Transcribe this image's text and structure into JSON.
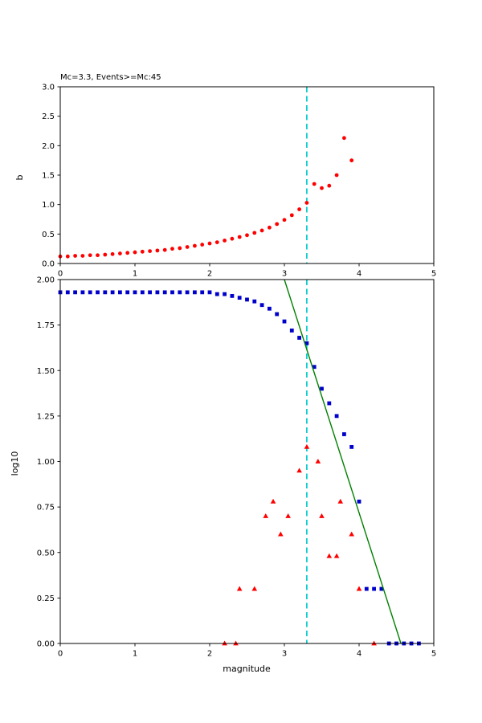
{
  "figure": {
    "background": "#ffffff",
    "accent_colors": {
      "scatter_red": "#ff0000",
      "cumulative_blue": "#0000cd",
      "fit_green": "#008000",
      "mc_cyan": "#00cccc"
    }
  },
  "chart_data": [
    {
      "type": "scatter",
      "title": "Mc=3.3, Events>=Mc:45",
      "xlabel": "",
      "ylabel": "b",
      "xlim": [
        0,
        5
      ],
      "ylim": [
        0,
        3
      ],
      "grid": false,
      "legend": "none",
      "xticks": [
        0,
        1,
        2,
        3,
        4,
        5
      ],
      "xticklabels": [
        "0",
        "1",
        "2",
        "3",
        "4",
        "5"
      ],
      "yticks": [
        0.0,
        0.5,
        1.0,
        1.5,
        2.0,
        2.5,
        3.0
      ],
      "yticklabels": [
        "0.0",
        "0.5",
        "1.0",
        "1.5",
        "2.0",
        "2.5",
        "3.0"
      ],
      "vline": {
        "x": 3.3,
        "color": "#00cccc",
        "style": "dashed"
      },
      "series": [
        {
          "name": "b_value",
          "marker": "circle",
          "color": "#ff0000",
          "x": [
            0.0,
            0.1,
            0.2,
            0.3,
            0.4,
            0.5,
            0.6,
            0.7,
            0.8,
            0.9,
            1.0,
            1.1,
            1.2,
            1.3,
            1.4,
            1.5,
            1.6,
            1.7,
            1.8,
            1.9,
            2.0,
            2.1,
            2.2,
            2.3,
            2.4,
            2.5,
            2.6,
            2.7,
            2.8,
            2.9,
            3.0,
            3.1,
            3.2,
            3.3,
            3.4,
            3.5,
            3.6,
            3.7,
            3.8,
            3.9
          ],
          "y": [
            0.12,
            0.12,
            0.13,
            0.13,
            0.14,
            0.14,
            0.15,
            0.16,
            0.17,
            0.18,
            0.19,
            0.2,
            0.21,
            0.22,
            0.23,
            0.25,
            0.26,
            0.28,
            0.3,
            0.32,
            0.34,
            0.36,
            0.39,
            0.42,
            0.45,
            0.48,
            0.52,
            0.56,
            0.61,
            0.67,
            0.74,
            0.82,
            0.92,
            1.03,
            1.35,
            1.28,
            1.32,
            1.5,
            2.13,
            1.75
          ]
        }
      ]
    },
    {
      "type": "scatter",
      "title": "",
      "xlabel": "magnitude",
      "ylabel": "log10",
      "xlim": [
        0,
        5
      ],
      "ylim": [
        0,
        2
      ],
      "grid": false,
      "legend": "none",
      "xticks": [
        0,
        1,
        2,
        3,
        4,
        5
      ],
      "xticklabels": [
        "0",
        "1",
        "2",
        "3",
        "4",
        "5"
      ],
      "yticks": [
        0.0,
        0.25,
        0.5,
        0.75,
        1.0,
        1.25,
        1.5,
        1.75,
        2.0
      ],
      "yticklabels": [
        "0.00",
        "0.25",
        "0.50",
        "0.75",
        "1.00",
        "1.25",
        "1.50",
        "1.75",
        "2.00"
      ],
      "vline": {
        "x": 3.3,
        "color": "#00cccc",
        "style": "dashed"
      },
      "series": [
        {
          "name": "cumulative_counts",
          "marker": "square",
          "color": "#0000cd",
          "x": [
            0.0,
            0.1,
            0.2,
            0.3,
            0.4,
            0.5,
            0.6,
            0.7,
            0.8,
            0.9,
            1.0,
            1.1,
            1.2,
            1.3,
            1.4,
            1.5,
            1.6,
            1.7,
            1.8,
            1.9,
            2.0,
            2.1,
            2.2,
            2.3,
            2.4,
            2.5,
            2.6,
            2.7,
            2.8,
            2.9,
            3.0,
            3.1,
            3.2,
            3.3,
            3.4,
            3.5,
            3.6,
            3.7,
            3.8,
            3.9,
            4.0,
            4.1,
            4.2,
            4.3,
            4.4,
            4.5,
            4.6,
            4.7,
            4.8
          ],
          "y": [
            1.93,
            1.93,
            1.93,
            1.93,
            1.93,
            1.93,
            1.93,
            1.93,
            1.93,
            1.93,
            1.93,
            1.93,
            1.93,
            1.93,
            1.93,
            1.93,
            1.93,
            1.93,
            1.93,
            1.93,
            1.93,
            1.92,
            1.92,
            1.91,
            1.9,
            1.89,
            1.88,
            1.86,
            1.84,
            1.81,
            1.77,
            1.72,
            1.68,
            1.65,
            1.52,
            1.4,
            1.32,
            1.25,
            1.15,
            1.08,
            0.78,
            0.3,
            0.3,
            0.3,
            0.0,
            0.0,
            0.0,
            0.0,
            0.0
          ]
        },
        {
          "name": "bin_counts",
          "marker": "triangle",
          "color": "#ff0000",
          "x": [
            2.2,
            2.35,
            2.4,
            2.6,
            2.75,
            2.85,
            2.95,
            3.05,
            3.2,
            3.3,
            3.45,
            3.5,
            3.6,
            3.7,
            3.75,
            3.9,
            4.0,
            4.2
          ],
          "y": [
            0.0,
            0.0,
            0.3,
            0.3,
            0.7,
            0.78,
            0.6,
            0.7,
            0.95,
            1.08,
            1.0,
            0.7,
            0.48,
            0.48,
            0.78,
            0.6,
            0.3,
            0.0
          ]
        },
        {
          "name": "gutenberg_richter_fit",
          "marker": "line",
          "color": "#008000",
          "x": [
            3.0,
            4.56
          ],
          "y": [
            2.0,
            0.0
          ]
        }
      ]
    }
  ]
}
